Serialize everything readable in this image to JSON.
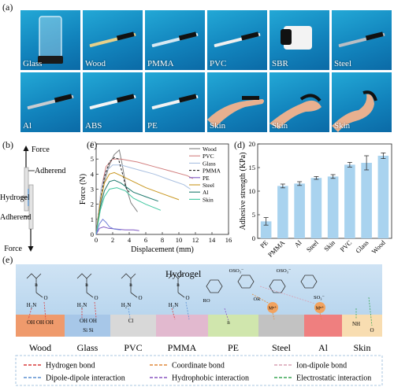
{
  "panel_labels": {
    "a": "(a)",
    "b": "(b)",
    "c": "(c)",
    "d": "(d)",
    "e": "(e)"
  },
  "photos": [
    {
      "name": "Glass",
      "kind": "beaker"
    },
    {
      "name": "Wood",
      "kind": "strip",
      "color": "#e6d08a"
    },
    {
      "name": "PMMA",
      "kind": "strip",
      "color": "#d6e8f2"
    },
    {
      "name": "PVC",
      "kind": "strip",
      "color": "#f0f0f0"
    },
    {
      "name": "SBR",
      "kind": "roll"
    },
    {
      "name": "Steel",
      "kind": "strip",
      "color": "#b9bec4"
    },
    {
      "name": "Al",
      "kind": "strip",
      "color": "#c9ccd0"
    },
    {
      "name": "ABS",
      "kind": "strip",
      "color": "#f4f4f4"
    },
    {
      "name": "PE",
      "kind": "strip",
      "color": "#f2f2f2"
    },
    {
      "name": "Skin",
      "kind": "finger",
      "pose": 1
    },
    {
      "name": "Skin",
      "kind": "finger",
      "pose": 2
    },
    {
      "name": "Skin",
      "kind": "finger",
      "pose": 3
    }
  ],
  "schematic_b": {
    "force_top": "Force",
    "adherend_top": "Adherend",
    "hydrogel": "Hydrogel",
    "adherend_bottom": "Adherend",
    "force_bottom": "Force"
  },
  "chart_data": [
    {
      "type": "line",
      "xlabel": "Displacement (mm)",
      "ylabel": "Force (N)",
      "xlim": [
        0,
        16
      ],
      "ylim": [
        0,
        6
      ],
      "xticks": [
        0,
        2,
        4,
        6,
        8,
        10,
        12,
        14,
        16
      ],
      "yticks": [
        0,
        1,
        2,
        3,
        4,
        5,
        6
      ],
      "legend_position": "top-right",
      "series": [
        {
          "name": "Wood",
          "color": "#808080",
          "dash": "",
          "points": [
            [
              0,
              0
            ],
            [
              0.5,
              2.0
            ],
            [
              1.0,
              3.5
            ],
            [
              1.6,
              4.6
            ],
            [
              2.2,
              5.3
            ],
            [
              2.8,
              5.6
            ],
            [
              3.2,
              4.5
            ],
            [
              3.6,
              3.2
            ],
            [
              4.2,
              2.1
            ],
            [
              5.0,
              1.5
            ]
          ]
        },
        {
          "name": "PVC",
          "color": "#d27f7f",
          "dash": "",
          "points": [
            [
              0,
              0
            ],
            [
              0.6,
              3.0
            ],
            [
              1.2,
              4.5
            ],
            [
              2.0,
              5.0
            ],
            [
              3.0,
              5.0
            ],
            [
              5.0,
              4.8
            ],
            [
              7.0,
              4.5
            ],
            [
              9.0,
              4.2
            ],
            [
              11.0,
              3.9
            ],
            [
              11.7,
              3.7
            ]
          ]
        },
        {
          "name": "Glass",
          "color": "#a8bfe0",
          "dash": "",
          "points": [
            [
              0,
              0
            ],
            [
              0.6,
              3.0
            ],
            [
              1.2,
              4.2
            ],
            [
              2.0,
              4.6
            ],
            [
              3.0,
              4.6
            ],
            [
              5.0,
              4.3
            ],
            [
              7.0,
              4.0
            ],
            [
              9.0,
              3.6
            ],
            [
              10.6,
              3.3
            ],
            [
              11.4,
              3.0
            ]
          ]
        },
        {
          "name": "PMMA",
          "color": "#222222",
          "dash": "3,2",
          "points": [
            [
              0,
              0
            ],
            [
              0.5,
              2.2
            ],
            [
              1.0,
              3.8
            ],
            [
              1.6,
              4.8
            ],
            [
              2.2,
              5.1
            ],
            [
              2.7,
              5.0
            ],
            [
              3.2,
              4.0
            ],
            [
              3.6,
              3.1
            ],
            [
              4.0,
              2.8
            ]
          ]
        },
        {
          "name": "PE",
          "color": "#7e57c2",
          "dash": "",
          "points": [
            [
              0,
              0
            ],
            [
              0.4,
              0.4
            ],
            [
              0.9,
              0.5
            ],
            [
              1.5,
              0.4
            ],
            [
              2.5,
              0.35
            ],
            [
              3.5,
              0.3
            ],
            [
              4.5,
              0.3
            ],
            [
              5.2,
              0.25
            ]
          ]
        },
        {
          "name": "Steel",
          "color": "#c8961e",
          "dash": "",
          "points": [
            [
              0,
              0
            ],
            [
              0.5,
              2.2
            ],
            [
              1.0,
              3.4
            ],
            [
              1.6,
              4.0
            ],
            [
              2.2,
              4.1
            ],
            [
              3.0,
              3.9
            ],
            [
              4.5,
              3.5
            ],
            [
              6.0,
              3.1
            ],
            [
              8.0,
              2.7
            ],
            [
              10.0,
              2.3
            ]
          ]
        },
        {
          "name": "Al",
          "color": "#1f7a6e",
          "dash": "",
          "points": [
            [
              0,
              0
            ],
            [
              0.5,
              1.8
            ],
            [
              1.0,
              2.9
            ],
            [
              1.6,
              3.5
            ],
            [
              2.2,
              3.6
            ],
            [
              3.0,
              3.4
            ],
            [
              4.5,
              2.8
            ],
            [
              6.0,
              2.5
            ],
            [
              7.5,
              2.2
            ]
          ]
        },
        {
          "name": "Skin",
          "color": "#3fc7a0",
          "dash": "",
          "points": [
            [
              0,
              0
            ],
            [
              0.5,
              1.6
            ],
            [
              1.0,
              2.5
            ],
            [
              1.6,
              3.0
            ],
            [
              2.5,
              3.1
            ],
            [
              3.5,
              2.9
            ],
            [
              4.5,
              2.4
            ],
            [
              6.0,
              2.0
            ],
            [
              7.8,
              1.6
            ]
          ]
        },
        {
          "name": "",
          "color": "#6e7fd6",
          "dash": "",
          "points": [
            [
              0,
              0
            ],
            [
              0.4,
              0.7
            ],
            [
              0.8,
              1.0
            ],
            [
              1.2,
              0.8
            ],
            [
              1.6,
              0.5
            ],
            [
              2.2,
              0.35
            ],
            [
              3.0,
              0.3
            ]
          ]
        }
      ]
    },
    {
      "type": "bar",
      "xlabel": "",
      "ylabel": "Adhesive strength (KPa)",
      "ylim": [
        0,
        20
      ],
      "yticks": [
        0,
        5,
        10,
        15,
        20
      ],
      "categories": [
        "PE",
        "PMMA",
        "Al",
        "Steel",
        "Skin",
        "PVC",
        "Glass",
        "Wood"
      ],
      "values": [
        3.6,
        11.1,
        11.6,
        12.8,
        13.1,
        15.6,
        16.0,
        17.5
      ],
      "errors": [
        0.8,
        0.4,
        0.4,
        0.3,
        0.4,
        0.5,
        1.5,
        0.6
      ],
      "bar_color": "#a9d3ef"
    }
  ],
  "schematic_e": {
    "header": "Hydrogel",
    "substrates": [
      {
        "name": "Wood",
        "color": "#ef9a6c"
      },
      {
        "name": "Glass",
        "color": "#a7c7e8"
      },
      {
        "name": "PVC",
        "color": "#d8d8d8"
      },
      {
        "name": "PMMA",
        "color": "#e2b9cf"
      },
      {
        "name": "PE",
        "color": "#d0e6ad"
      },
      {
        "name": "Steel",
        "color": "#c2c2c2"
      },
      {
        "name": "Al",
        "color": "#ef7f7f"
      },
      {
        "name": "Skin",
        "color": "#f8ddb1"
      }
    ],
    "groups": {
      "wood": "OH OH OH",
      "glass_oh": "OH OH",
      "glass_si": "Si Si",
      "pvc_cl": "Cl",
      "skin_nh": "NH",
      "metal_ion": "Mⁿ⁺",
      "amide_o": "O",
      "amide_n": "H₂N",
      "n": "n",
      "oso3": "OSO₃⁻",
      "ro": "RO",
      "or": "OR",
      "so3": "SO₃⁻"
    },
    "legend": [
      {
        "label": "Hydrogen bond",
        "color": "#d93a3a",
        "dash": "4,2"
      },
      {
        "label": "Coordinate bond",
        "color": "#e08a3c",
        "dash": "4,2"
      },
      {
        "label": "Ion-dipole bond",
        "color": "#d9a0b3",
        "dash": "4,2"
      },
      {
        "label": "Dipole-dipole interaction",
        "color": "#5b8fd1",
        "dash": "4,2"
      },
      {
        "label": "Hydrophobic interaction",
        "color": "#8855c0",
        "dash": "4,2"
      },
      {
        "label": "Electrostatic interaction",
        "color": "#3aa655",
        "dash": "4,2"
      }
    ]
  }
}
